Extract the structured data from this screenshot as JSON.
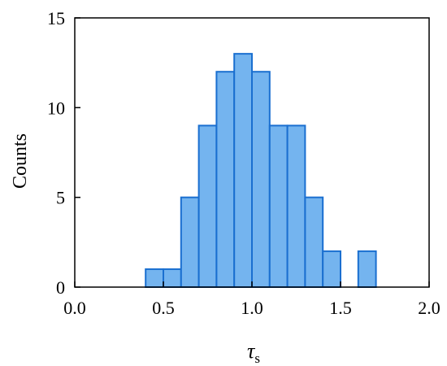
{
  "chart_data": {
    "type": "bar",
    "subtype": "histogram",
    "bin_width": 0.1,
    "bin_starts": [
      0.4,
      0.5,
      0.6,
      0.7,
      0.8,
      0.9,
      1.0,
      1.1,
      1.2,
      1.3,
      1.4,
      1.5,
      1.6
    ],
    "values": [
      1,
      1,
      5,
      9,
      12,
      13,
      12,
      9,
      9,
      5,
      2,
      0,
      2
    ],
    "xlim": [
      0.0,
      2.0
    ],
    "ylim": [
      0,
      15
    ],
    "xticks": [
      "0.0",
      "0.5",
      "1.0",
      "1.5",
      "2.0"
    ],
    "yticks": [
      "0",
      "5",
      "10",
      "15"
    ],
    "xlabel_main": "τ",
    "xlabel_sub": "s",
    "ylabel": "Counts",
    "grid": false,
    "colors": {
      "fill": "#74b4ef",
      "edge": "#1a6fd0",
      "axis": "#000000"
    }
  }
}
